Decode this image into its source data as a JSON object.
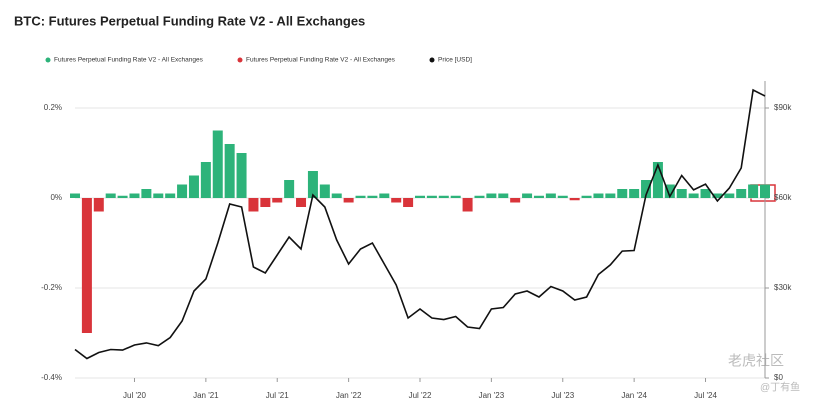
{
  "chart_data": {
    "type": "bar-line",
    "title": "BTC: Futures Perpetual Funding Rate V2 - All Exchanges",
    "x": [
      "2020-02",
      "2020-03",
      "2020-04",
      "2020-05",
      "2020-06",
      "2020-07",
      "2020-08",
      "2020-09",
      "2020-10",
      "2020-11",
      "2020-12",
      "2021-01",
      "2021-02",
      "2021-03",
      "2021-04",
      "2021-05",
      "2021-06",
      "2021-07",
      "2021-08",
      "2021-09",
      "2021-10",
      "2021-11",
      "2021-12",
      "2022-01",
      "2022-02",
      "2022-03",
      "2022-04",
      "2022-05",
      "2022-06",
      "2022-07",
      "2022-08",
      "2022-09",
      "2022-10",
      "2022-11",
      "2022-12",
      "2023-01",
      "2023-02",
      "2023-03",
      "2023-04",
      "2023-05",
      "2023-06",
      "2023-07",
      "2023-08",
      "2023-09",
      "2023-10",
      "2023-11",
      "2023-12",
      "2024-01",
      "2024-02",
      "2024-03",
      "2024-04",
      "2024-05",
      "2024-06",
      "2024-07",
      "2024-08",
      "2024-09",
      "2024-10",
      "2024-11",
      "2024-12"
    ],
    "series": [
      {
        "name": "Futures Perpetual Funding Rate V2 - All Exchanges",
        "color": "#2db37a",
        "values": [
          0.01,
          null,
          null,
          0.01,
          0.005,
          0.01,
          0.02,
          0.01,
          0.01,
          0.03,
          0.05,
          0.08,
          0.15,
          0.12,
          0.1,
          null,
          null,
          null,
          0.04,
          null,
          0.06,
          0.03,
          0.01,
          null,
          0.005,
          0.005,
          0.01,
          null,
          null,
          0.005,
          0.005,
          0.005,
          0.005,
          null,
          0.005,
          0.01,
          0.01,
          null,
          0.01,
          0.005,
          0.01,
          0.005,
          null,
          0.005,
          0.01,
          0.01,
          0.02,
          0.02,
          0.04,
          0.08,
          0.03,
          0.02,
          0.01,
          0.02,
          0.01,
          0.01,
          0.02,
          0.03,
          0.03
        ]
      },
      {
        "name": "Futures Perpetual Funding Rate V2 - All Exchanges",
        "color": "#d9343a",
        "values": [
          null,
          -0.3,
          -0.03,
          null,
          null,
          null,
          null,
          null,
          null,
          null,
          null,
          null,
          null,
          null,
          null,
          -0.03,
          -0.02,
          -0.01,
          null,
          -0.02,
          null,
          null,
          null,
          -0.01,
          null,
          null,
          null,
          -0.01,
          -0.02,
          null,
          null,
          null,
          null,
          -0.03,
          null,
          null,
          null,
          -0.01,
          null,
          null,
          null,
          null,
          -0.005,
          null,
          null,
          null,
          null,
          null,
          null,
          null,
          null,
          null,
          null,
          null,
          null,
          null,
          null,
          null,
          null
        ]
      },
      {
        "name": "Price [USD]",
        "color": "#111111",
        "axis": "y2",
        "values": [
          9500,
          6500,
          8500,
          9500,
          9300,
          11000,
          11700,
          10800,
          13500,
          19000,
          29000,
          33000,
          45000,
          58000,
          57000,
          37000,
          35000,
          41000,
          47000,
          43000,
          61000,
          57000,
          46000,
          38000,
          43000,
          45000,
          38000,
          31000,
          20000,
          23000,
          20000,
          19500,
          20500,
          17000,
          16500,
          23000,
          23500,
          28000,
          29000,
          27000,
          30500,
          29000,
          26000,
          27000,
          34500,
          37700,
          42300,
          42500,
          61000,
          71000,
          60500,
          67500,
          62700,
          64600,
          59000,
          63300,
          70000,
          96000,
          94000
        ]
      }
    ],
    "xlim": [
      "2020-02",
      "2024-12"
    ],
    "xticks": [
      {
        "value": "2020-07",
        "label": "Jul '20"
      },
      {
        "value": "2021-01",
        "label": "Jan '21"
      },
      {
        "value": "2021-07",
        "label": "Jul '21"
      },
      {
        "value": "2022-01",
        "label": "Jan '22"
      },
      {
        "value": "2022-07",
        "label": "Jul '22"
      },
      {
        "value": "2023-01",
        "label": "Jan '23"
      },
      {
        "value": "2023-07",
        "label": "Jul '23"
      },
      {
        "value": "2024-01",
        "label": "Jan '24"
      },
      {
        "value": "2024-07",
        "label": "Jul '24"
      }
    ],
    "ylim": [
      -0.4,
      0.26
    ],
    "yticks": [
      {
        "value": 0.2,
        "label": "0.2%"
      },
      {
        "value": 0,
        "label": "0%"
      },
      {
        "value": -0.2,
        "label": "-0.2%"
      },
      {
        "value": -0.4,
        "label": "-0.4%"
      }
    ],
    "y2lim": [
      0,
      99000
    ],
    "y2ticks": [
      {
        "value": 90000,
        "label": "$90k"
      },
      {
        "value": 60000,
        "label": "$60k"
      },
      {
        "value": 30000,
        "label": "$30k"
      },
      {
        "value": 0,
        "label": "$0"
      }
    ],
    "grid": true,
    "watermark": [
      "老虎社区",
      "@丁有鱼"
    ]
  }
}
